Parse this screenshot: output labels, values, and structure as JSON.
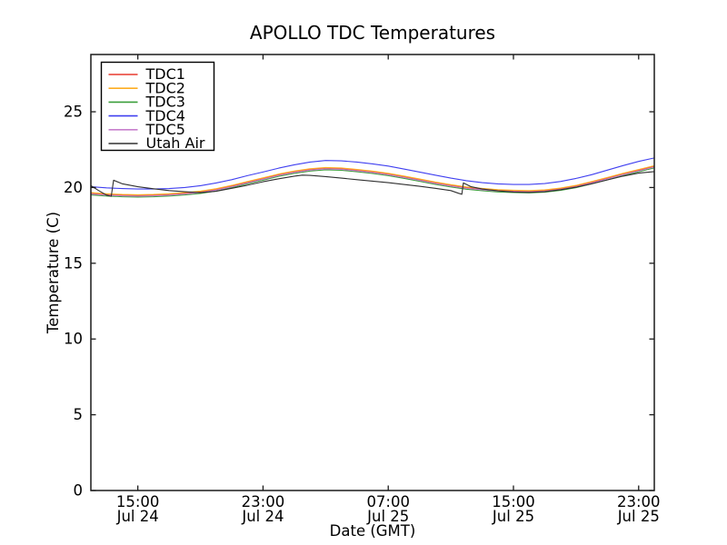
{
  "chart_data": {
    "type": "line",
    "title": "APOLLO TDC Temperatures",
    "xlabel": "Date (GMT)",
    "ylabel": "Temperature (C)",
    "x_unit": "hours since Jul 24 12:00 GMT",
    "xlim": [
      0,
      36
    ],
    "ylim": [
      0,
      28.78
    ],
    "grid": false,
    "legend_position": "upper left",
    "yticks": [
      0,
      5,
      10,
      15,
      20,
      25
    ],
    "xticks": [
      {
        "h": 3,
        "time": "15:00",
        "date": "Jul 24"
      },
      {
        "h": 11,
        "time": "23:00",
        "date": "Jul 24"
      },
      {
        "h": 19,
        "time": "07:00",
        "date": "Jul 25"
      },
      {
        "h": 27,
        "time": "15:00",
        "date": "Jul 25"
      },
      {
        "h": 35,
        "time": "23:00",
        "date": "Jul 25"
      }
    ],
    "series": [
      {
        "name": "TDC1",
        "color": "#e8392e",
        "points": [
          [
            0,
            19.62
          ],
          [
            1,
            19.55
          ],
          [
            2,
            19.5
          ],
          [
            3,
            19.48
          ],
          [
            4,
            19.5
          ],
          [
            5,
            19.55
          ],
          [
            6,
            19.62
          ],
          [
            7,
            19.72
          ],
          [
            8,
            19.88
          ],
          [
            9,
            20.1
          ],
          [
            10,
            20.35
          ],
          [
            11,
            20.6
          ],
          [
            12,
            20.85
          ],
          [
            13,
            21.05
          ],
          [
            14,
            21.2
          ],
          [
            15,
            21.28
          ],
          [
            16,
            21.25
          ],
          [
            17,
            21.15
          ],
          [
            18,
            21.04
          ],
          [
            19,
            20.9
          ],
          [
            20,
            20.72
          ],
          [
            21,
            20.52
          ],
          [
            22,
            20.32
          ],
          [
            23,
            20.15
          ],
          [
            24,
            20.0
          ],
          [
            25,
            19.9
          ],
          [
            26,
            19.82
          ],
          [
            27,
            19.78
          ],
          [
            28,
            19.76
          ],
          [
            29,
            19.8
          ],
          [
            30,
            19.92
          ],
          [
            31,
            20.1
          ],
          [
            32,
            20.35
          ],
          [
            33,
            20.62
          ],
          [
            34,
            20.9
          ],
          [
            35,
            21.15
          ],
          [
            36,
            21.4
          ]
        ]
      },
      {
        "name": "TDC2",
        "color": "#fdad22",
        "points": [
          [
            0,
            19.66
          ],
          [
            1,
            19.59
          ],
          [
            2,
            19.54
          ],
          [
            3,
            19.52
          ],
          [
            4,
            19.54
          ],
          [
            5,
            19.59
          ],
          [
            6,
            19.66
          ],
          [
            7,
            19.76
          ],
          [
            8,
            19.92
          ],
          [
            9,
            20.14
          ],
          [
            10,
            20.39
          ],
          [
            11,
            20.64
          ],
          [
            12,
            20.89
          ],
          [
            13,
            21.09
          ],
          [
            14,
            21.24
          ],
          [
            15,
            21.32
          ],
          [
            16,
            21.29
          ],
          [
            17,
            21.19
          ],
          [
            18,
            21.08
          ],
          [
            19,
            20.94
          ],
          [
            20,
            20.76
          ],
          [
            21,
            20.56
          ],
          [
            22,
            20.36
          ],
          [
            23,
            20.19
          ],
          [
            24,
            20.04
          ],
          [
            25,
            19.94
          ],
          [
            26,
            19.86
          ],
          [
            27,
            19.82
          ],
          [
            28,
            19.8
          ],
          [
            29,
            19.84
          ],
          [
            30,
            19.96
          ],
          [
            31,
            20.14
          ],
          [
            32,
            20.39
          ],
          [
            33,
            20.66
          ],
          [
            34,
            20.94
          ],
          [
            35,
            21.19
          ],
          [
            36,
            21.44
          ]
        ]
      },
      {
        "name": "TDC3",
        "color": "#3a9e3a",
        "points": [
          [
            0,
            19.51
          ],
          [
            1,
            19.44
          ],
          [
            2,
            19.39
          ],
          [
            3,
            19.37
          ],
          [
            4,
            19.39
          ],
          [
            5,
            19.44
          ],
          [
            6,
            19.51
          ],
          [
            7,
            19.61
          ],
          [
            8,
            19.77
          ],
          [
            9,
            19.99
          ],
          [
            10,
            20.24
          ],
          [
            11,
            20.49
          ],
          [
            12,
            20.74
          ],
          [
            13,
            20.94
          ],
          [
            14,
            21.09
          ],
          [
            15,
            21.17
          ],
          [
            16,
            21.14
          ],
          [
            17,
            21.04
          ],
          [
            18,
            20.93
          ],
          [
            19,
            20.79
          ],
          [
            20,
            20.61
          ],
          [
            21,
            20.41
          ],
          [
            22,
            20.21
          ],
          [
            23,
            20.04
          ],
          [
            24,
            19.89
          ],
          [
            25,
            19.79
          ],
          [
            26,
            19.71
          ],
          [
            27,
            19.67
          ],
          [
            28,
            19.65
          ],
          [
            29,
            19.69
          ],
          [
            30,
            19.81
          ],
          [
            31,
            19.99
          ],
          [
            32,
            20.24
          ],
          [
            33,
            20.51
          ],
          [
            34,
            20.79
          ],
          [
            35,
            21.04
          ],
          [
            36,
            21.29
          ]
        ]
      },
      {
        "name": "TDC4",
        "color": "#4040f0",
        "points": [
          [
            0,
            20.05
          ],
          [
            1,
            19.98
          ],
          [
            2,
            19.93
          ],
          [
            3,
            19.9
          ],
          [
            4,
            19.9
          ],
          [
            5,
            19.93
          ],
          [
            6,
            20.0
          ],
          [
            7,
            20.12
          ],
          [
            8,
            20.3
          ],
          [
            9,
            20.52
          ],
          [
            10,
            20.78
          ],
          [
            11,
            21.02
          ],
          [
            12,
            21.28
          ],
          [
            13,
            21.5
          ],
          [
            14,
            21.68
          ],
          [
            15,
            21.78
          ],
          [
            16,
            21.76
          ],
          [
            17,
            21.68
          ],
          [
            18,
            21.56
          ],
          [
            19,
            21.42
          ],
          [
            20,
            21.22
          ],
          [
            21,
            21.02
          ],
          [
            22,
            20.82
          ],
          [
            23,
            20.62
          ],
          [
            24,
            20.45
          ],
          [
            25,
            20.32
          ],
          [
            26,
            20.24
          ],
          [
            27,
            20.2
          ],
          [
            28,
            20.2
          ],
          [
            29,
            20.26
          ],
          [
            30,
            20.4
          ],
          [
            31,
            20.6
          ],
          [
            32,
            20.85
          ],
          [
            33,
            21.15
          ],
          [
            34,
            21.45
          ],
          [
            35,
            21.72
          ],
          [
            36,
            21.95
          ]
        ]
      },
      {
        "name": "TDC5",
        "color": "#c87fcd",
        "points": [
          [
            0,
            19.57
          ],
          [
            1,
            19.5
          ],
          [
            2,
            19.45
          ],
          [
            3,
            19.43
          ],
          [
            4,
            19.45
          ],
          [
            5,
            19.5
          ],
          [
            6,
            19.57
          ],
          [
            7,
            19.67
          ],
          [
            8,
            19.83
          ],
          [
            9,
            20.05
          ],
          [
            10,
            20.3
          ],
          [
            11,
            20.55
          ],
          [
            12,
            20.8
          ],
          [
            13,
            21.0
          ],
          [
            14,
            21.15
          ],
          [
            15,
            21.23
          ],
          [
            16,
            21.2
          ],
          [
            17,
            21.1
          ],
          [
            18,
            20.99
          ],
          [
            19,
            20.85
          ],
          [
            20,
            20.67
          ],
          [
            21,
            20.47
          ],
          [
            22,
            20.27
          ],
          [
            23,
            20.1
          ],
          [
            24,
            19.95
          ],
          [
            25,
            19.85
          ],
          [
            26,
            19.77
          ],
          [
            27,
            19.73
          ],
          [
            28,
            19.71
          ],
          [
            29,
            19.75
          ],
          [
            30,
            19.87
          ],
          [
            31,
            20.05
          ],
          [
            32,
            20.3
          ],
          [
            33,
            20.57
          ],
          [
            34,
            20.85
          ],
          [
            35,
            21.1
          ],
          [
            36,
            21.35
          ]
        ]
      },
      {
        "name": "Utah Air",
        "color": "#303030",
        "points": [
          [
            0,
            20.12
          ],
          [
            0.5,
            19.8
          ],
          [
            1,
            19.5
          ],
          [
            1.3,
            19.42
          ],
          [
            1.45,
            20.48
          ],
          [
            2,
            20.25
          ],
          [
            3,
            20.05
          ],
          [
            4,
            19.92
          ],
          [
            5,
            19.8
          ],
          [
            6,
            19.72
          ],
          [
            7,
            19.66
          ],
          [
            8,
            19.75
          ],
          [
            9,
            19.95
          ],
          [
            10,
            20.15
          ],
          [
            11,
            20.38
          ],
          [
            12,
            20.58
          ],
          [
            13,
            20.75
          ],
          [
            13.5,
            20.82
          ],
          [
            14,
            20.8
          ],
          [
            15,
            20.72
          ],
          [
            16,
            20.62
          ],
          [
            17,
            20.52
          ],
          [
            18,
            20.42
          ],
          [
            19,
            20.32
          ],
          [
            20,
            20.2
          ],
          [
            21,
            20.08
          ],
          [
            22,
            19.95
          ],
          [
            23,
            19.8
          ],
          [
            23.5,
            19.62
          ],
          [
            23.7,
            19.55
          ],
          [
            23.8,
            20.3
          ],
          [
            24.3,
            20.05
          ],
          [
            25,
            19.9
          ],
          [
            26,
            19.78
          ],
          [
            27,
            19.7
          ],
          [
            28,
            19.68
          ],
          [
            29,
            19.72
          ],
          [
            30,
            19.85
          ],
          [
            31,
            20.02
          ],
          [
            32,
            20.25
          ],
          [
            33,
            20.5
          ],
          [
            34,
            20.75
          ],
          [
            35,
            20.95
          ],
          [
            36,
            21.05
          ]
        ]
      }
    ]
  }
}
